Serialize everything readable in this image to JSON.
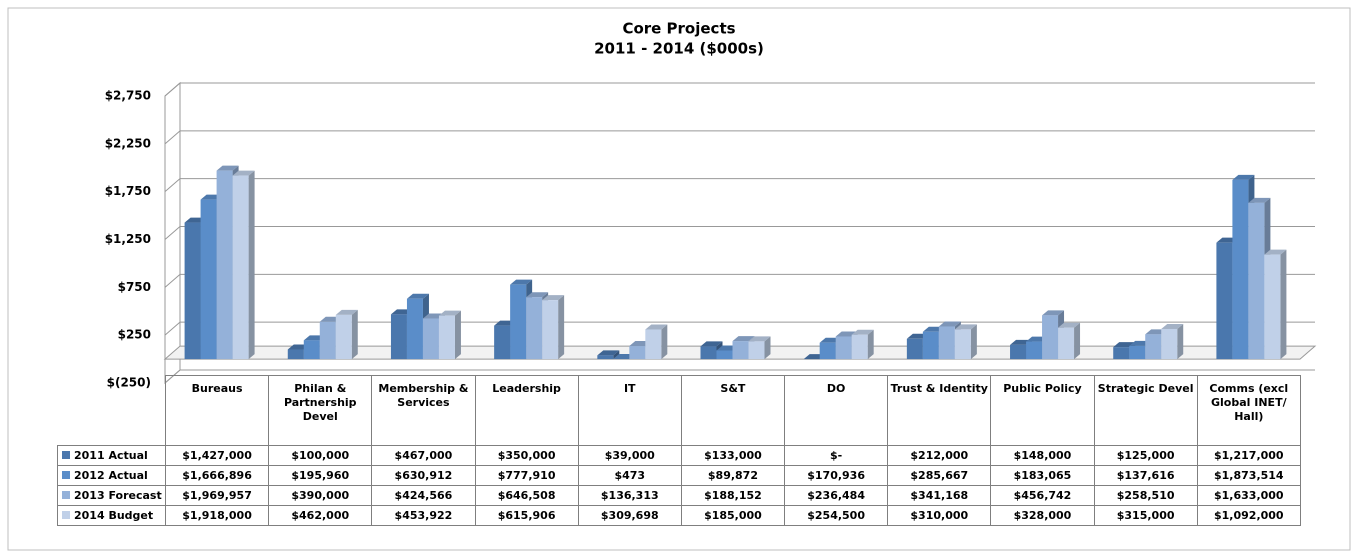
{
  "chart_data": {
    "type": "bar3d",
    "title": "Core Projects",
    "subtitle": "2011 - 2014 ($000s)",
    "categories": [
      "Bureaus",
      "Philan & Partnership Devel",
      "Membership & Services",
      "Leadership",
      "IT",
      "S&T",
      "DO",
      "Trust & Identity",
      "Public Policy",
      "Strategic Devel",
      "Comms (excl Global INET/ Hall)"
    ],
    "series": [
      {
        "name": "2011 Actual",
        "color": "#4a77ad",
        "values": [
          1427,
          100,
          467,
          350,
          39,
          133,
          0,
          212,
          148,
          125,
          1217
        ],
        "value_labels": [
          "$1,427,000",
          "$100,000",
          "$467,000",
          "$350,000",
          "$39,000",
          "$133,000",
          "$-",
          "$212,000",
          "$148,000",
          "$125,000",
          "$1,217,000"
        ]
      },
      {
        "name": "2012 Actual",
        "color": "#5a8dc9",
        "values": [
          1666.896,
          195.96,
          630.912,
          777.91,
          0.473,
          89.872,
          170.936,
          285.667,
          183.065,
          137.616,
          1873.514
        ],
        "value_labels": [
          "$1,666,896",
          "$195,960",
          "$630,912",
          "$777,910",
          "$473",
          "$89,872",
          "$170,936",
          "$285,667",
          "$183,065",
          "$137,616",
          "$1,873,514"
        ]
      },
      {
        "name": "2013 Forecast",
        "color": "#94b1d9",
        "values": [
          1969.957,
          390,
          424.566,
          646.508,
          136.313,
          188.152,
          236.484,
          341.168,
          456.742,
          258.51,
          1633
        ],
        "value_labels": [
          "$1,969,957",
          "$390,000",
          "$424,566",
          "$646,508",
          "$136,313",
          "$188,152",
          "$236,484",
          "$341,168",
          "$456,742",
          "$258,510",
          "$1,633,000"
        ]
      },
      {
        "name": "2014 Budget",
        "color": "#c0d0e8",
        "values": [
          1918,
          462,
          453.922,
          615.906,
          309.698,
          185,
          254.5,
          310,
          328,
          315,
          1092
        ],
        "value_labels": [
          "$1,918,000",
          "$462,000",
          "$453,922",
          "$615,906",
          "$309,698",
          "$185,000",
          "$254,500",
          "$310,000",
          "$328,000",
          "$315,000",
          "$1,092,000"
        ]
      }
    ],
    "ylim": [
      -250,
      2750
    ],
    "yticks": [
      {
        "value": -250,
        "label": "$(250)"
      },
      {
        "value": 250,
        "label": "$250"
      },
      {
        "value": 750,
        "label": "$750"
      },
      {
        "value": 1250,
        "label": "$1,250"
      },
      {
        "value": 1750,
        "label": "$1,750"
      },
      {
        "value": 2250,
        "label": "$2,250"
      },
      {
        "value": 2750,
        "label": "$2,750"
      }
    ],
    "grid": true
  }
}
